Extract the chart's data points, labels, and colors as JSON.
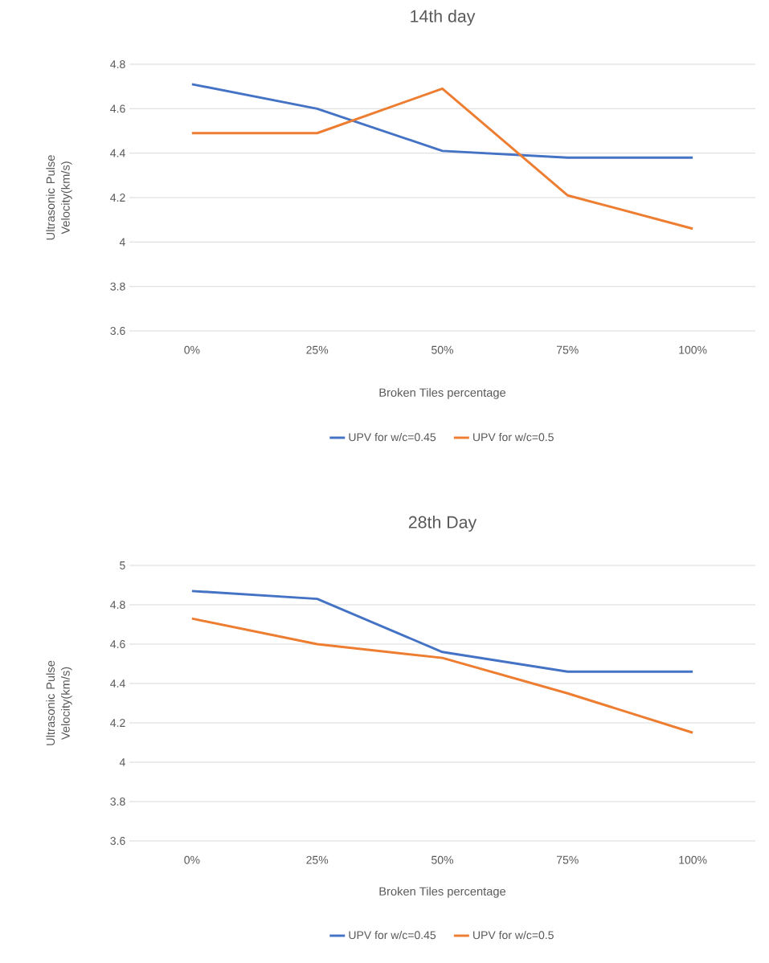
{
  "chart_data": [
    {
      "type": "line",
      "title": "14th day",
      "xlabel": "Broken Tiles percentage",
      "ylabel": "Ultrasonic Pulse Velocity(km/s)",
      "categories": [
        "0%",
        "25%",
        "50%",
        "75%",
        "100%"
      ],
      "series": [
        {
          "name": "UPV for w/c=0.45",
          "color": "#4472c4",
          "values": [
            4.71,
            4.6,
            4.41,
            4.38,
            4.38
          ]
        },
        {
          "name": "UPV for w/c=0.5",
          "color": "#ed7d31",
          "values": [
            4.49,
            4.49,
            4.69,
            4.21,
            4.06
          ]
        }
      ],
      "ylim": [
        3.6,
        4.8
      ],
      "yticks": [
        3.6,
        3.8,
        4,
        4.2,
        4.4,
        4.6,
        4.8
      ],
      "grid": "y",
      "legend": "bottom"
    },
    {
      "type": "line",
      "title": "28th Day",
      "xlabel": "Broken Tiles percentage",
      "ylabel": "Ultrasonic Pulse Velocity(km/s)",
      "categories": [
        "0%",
        "25%",
        "50%",
        "75%",
        "100%"
      ],
      "series": [
        {
          "name": "UPV for w/c=0.45",
          "color": "#4472c4",
          "values": [
            4.87,
            4.83,
            4.56,
            4.46,
            4.46
          ]
        },
        {
          "name": "UPV for w/c=0.5",
          "color": "#ed7d31",
          "values": [
            4.73,
            4.6,
            4.53,
            4.35,
            4.15
          ]
        }
      ],
      "ylim": [
        3.6,
        5
      ],
      "yticks": [
        3.6,
        3.8,
        4,
        4.2,
        4.4,
        4.6,
        4.8,
        5
      ],
      "grid": "y",
      "legend": "bottom"
    }
  ]
}
